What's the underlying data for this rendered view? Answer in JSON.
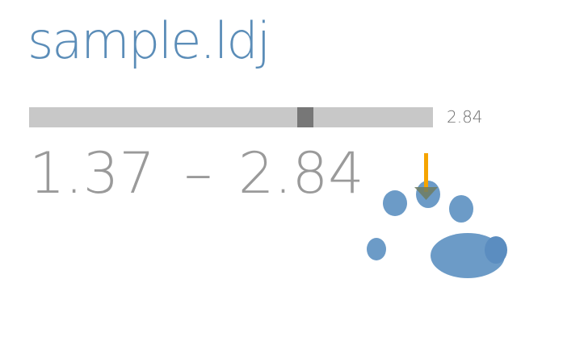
{
  "title": "sample.ldj",
  "slider": {
    "value_label": "2.84",
    "position_fraction": 0.675
  },
  "range": {
    "min": "1.37",
    "separator": "–",
    "max": "2.84"
  },
  "colors": {
    "title": "#5b8db8",
    "track": "#c8c8c8",
    "thumb": "#777777",
    "paw": "#6c9bc7",
    "arrow": "#f5a400"
  },
  "icons": {
    "mascot": "paw-icon",
    "download": "down-arrow-icon"
  }
}
